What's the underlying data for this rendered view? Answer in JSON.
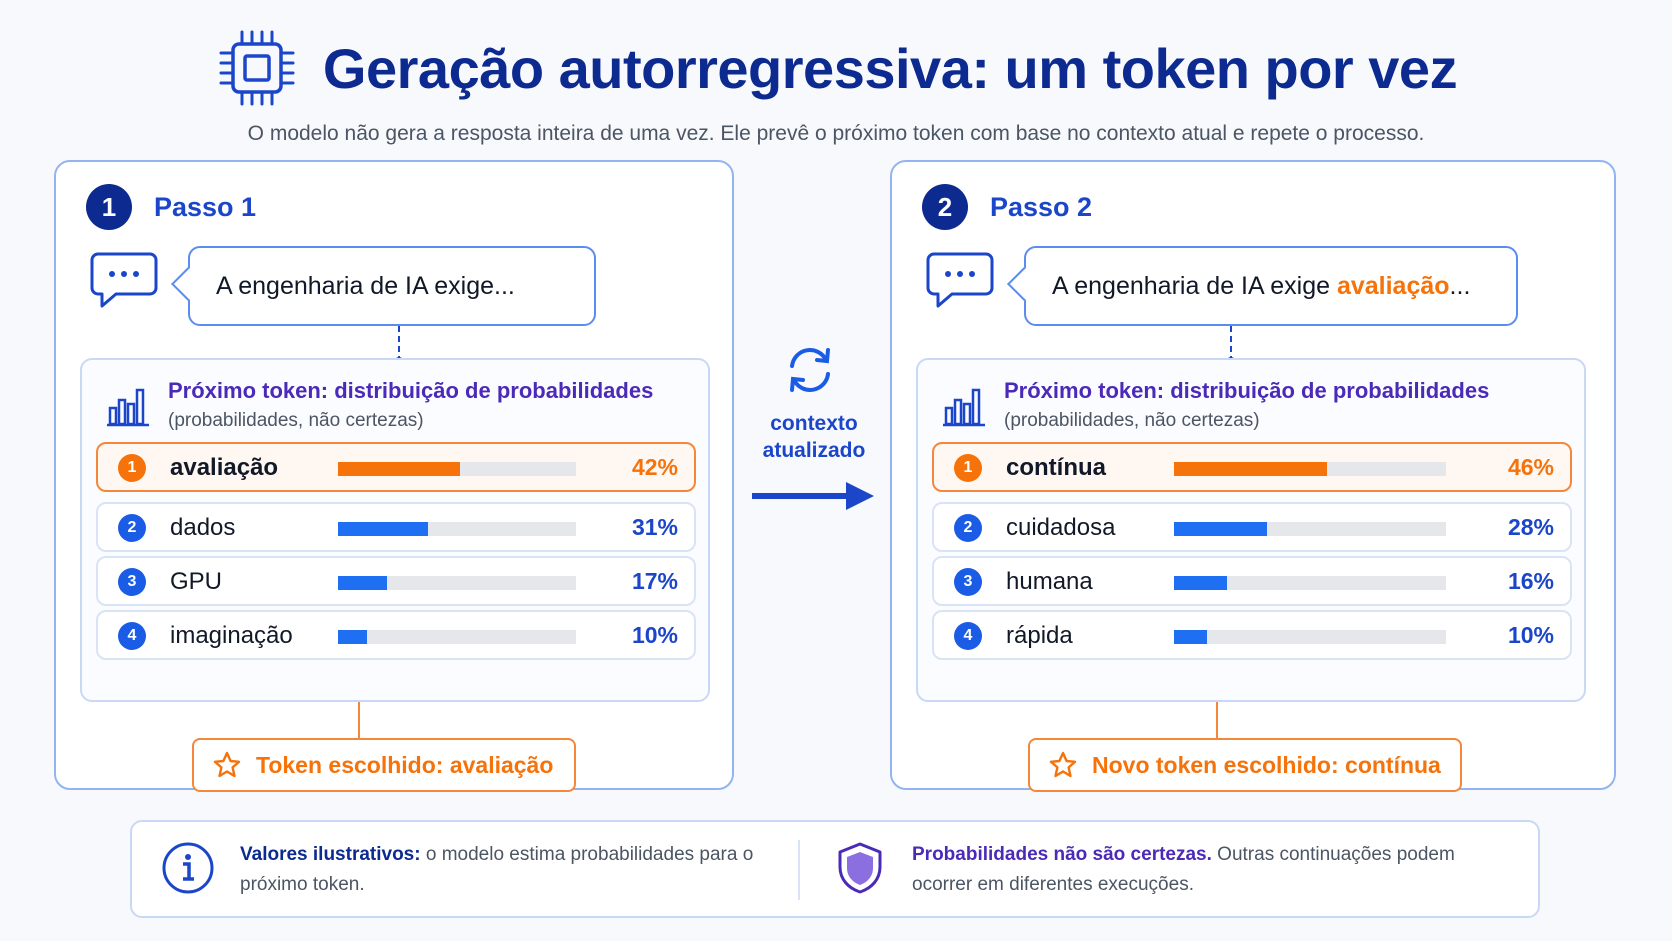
{
  "header": {
    "title": "Geração autorregressiva: um token por vez",
    "subtitle": "O modelo não gera a resposta inteira de uma vez. Ele prevê o próximo token com base no contexto atual e repete o processo."
  },
  "colors": {
    "navy": "#0c2a8f",
    "blue": "#1f6ff2",
    "orange": "#f5730a",
    "purple": "#4c2ab8"
  },
  "steps": [
    {
      "number": "1",
      "title": "Passo 1",
      "context": "A engenharia de IA exige...",
      "context_highlight": "",
      "context_suffix": "",
      "dist_title": "Próximo token: distribuição de probabilidades",
      "dist_sub": "(probabilidades, não certezas)",
      "tokens": [
        {
          "rank": "1",
          "word": "avaliação",
          "pct_label": "42%",
          "value": 42
        },
        {
          "rank": "2",
          "word": "dados",
          "pct_label": "31%",
          "value": 31
        },
        {
          "rank": "3",
          "word": "GPU",
          "pct_label": "17%",
          "value": 17
        },
        {
          "rank": "4",
          "word": "imaginação",
          "pct_label": "10%",
          "value": 10
        }
      ],
      "chosen": "Token escolhido: avaliação"
    },
    {
      "number": "2",
      "title": "Passo 2",
      "context": "A engenharia de IA exige ",
      "context_highlight": "avaliação",
      "context_suffix": "...",
      "dist_title": "Próximo token: distribuição de probabilidades",
      "dist_sub": "(probabilidades, não certezas)",
      "tokens": [
        {
          "rank": "1",
          "word": "contínua",
          "pct_label": "46%",
          "value": 46
        },
        {
          "rank": "2",
          "word": "cuidadosa",
          "pct_label": "28%",
          "value": 28
        },
        {
          "rank": "3",
          "word": "humana",
          "pct_label": "16%",
          "value": 16
        },
        {
          "rank": "4",
          "word": "rápida",
          "pct_label": "10%",
          "value": 10
        }
      ],
      "chosen": "Novo token escolhido: contínua"
    }
  ],
  "middle": {
    "line1": "contexto",
    "line2": "atualizado"
  },
  "footer": {
    "left_bold": "Valores ilustrativos:",
    "left_text": " o modelo estima probabilidades para o próximo token.",
    "right_bold": "Probabilidades não são certezas.",
    "right_text": " Outras continuações podem ocorrer em diferentes execuções."
  },
  "icons": [
    "chip-icon",
    "chat-icon",
    "bar-chart-icon",
    "star-icon",
    "refresh-icon",
    "arrow-right-icon",
    "info-icon",
    "shield-icon"
  ]
}
